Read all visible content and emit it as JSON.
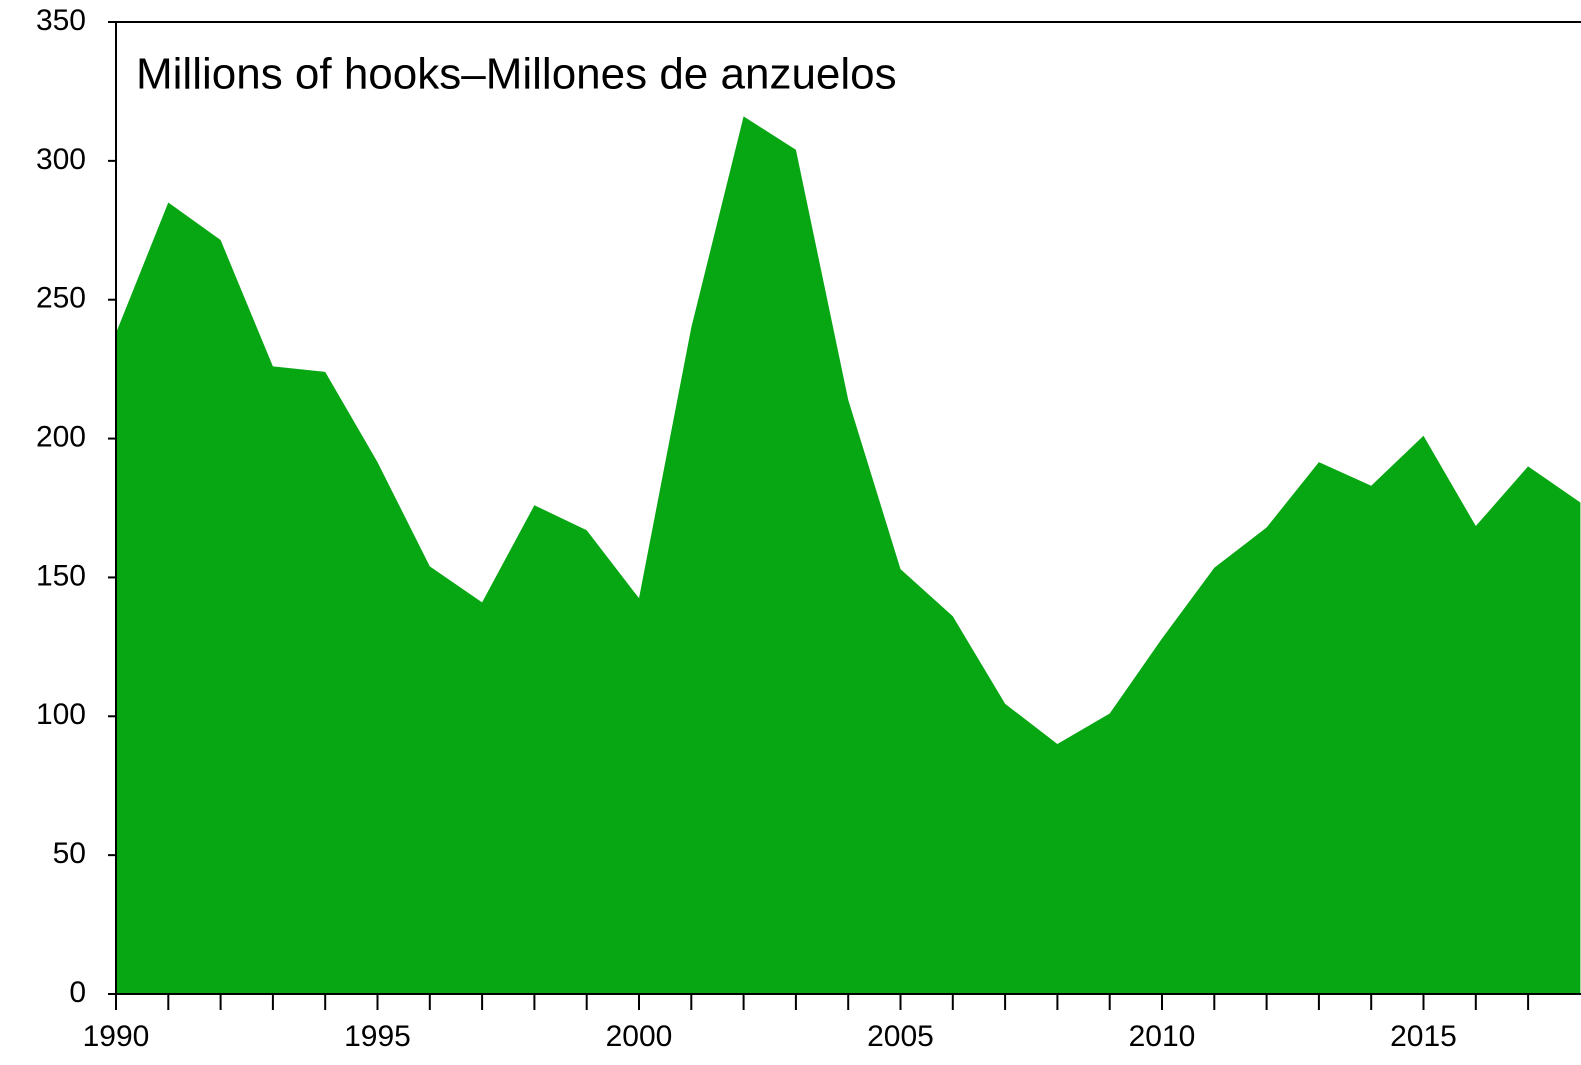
{
  "chart_data": {
    "type": "area",
    "title": "Millions of hooks–Millones de anzuelos",
    "x": [
      1990,
      1991,
      1992,
      1993,
      1994,
      1995,
      1996,
      1997,
      1998,
      1999,
      2000,
      2001,
      2002,
      2003,
      2004,
      2005,
      2006,
      2007,
      2008,
      2009,
      2010,
      2011,
      2012,
      2013,
      2014,
      2015,
      2016,
      2017,
      2018
    ],
    "series": [
      {
        "color": "#07a613",
        "values": [
          238,
          285,
          271.5,
          226,
          224,
          191.5,
          154,
          141,
          176,
          167,
          142.5,
          240,
          316,
          304,
          214,
          153,
          136,
          104.5,
          90,
          101,
          128,
          153.5,
          168,
          191.5,
          183,
          201,
          168.5,
          190,
          177
        ]
      }
    ],
    "xlim": [
      1990,
      2017.8
    ],
    "xticks": [
      1990,
      1995,
      2000,
      2005,
      2010,
      2015
    ],
    "ylim": [
      0,
      350
    ],
    "yticks": [
      0,
      50,
      100,
      150,
      200,
      250,
      300,
      350
    ],
    "grid": false
  }
}
